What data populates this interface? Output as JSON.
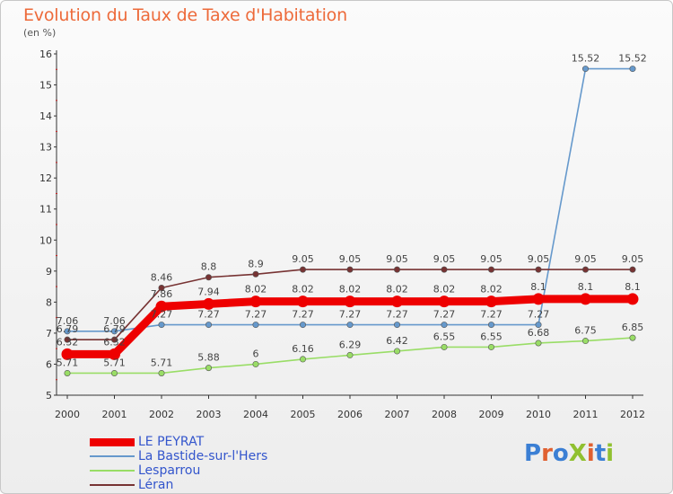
{
  "chart_data": {
    "type": "line",
    "title": "Evolution du Taux de Taxe d'Habitation",
    "subtitle": "(en %)",
    "categories": [
      "2000",
      "2001",
      "2002",
      "2003",
      "2004",
      "2005",
      "2006",
      "2007",
      "2008",
      "2009",
      "2010",
      "2011",
      "2012"
    ],
    "ylim": [
      5,
      16
    ],
    "yticks": [
      "5",
      "6",
      "7",
      "8",
      "9",
      "10",
      "11",
      "12",
      "13",
      "14",
      "15",
      "16"
    ],
    "grid": false,
    "legend_position": "bottom-left",
    "series": [
      {
        "name": "LE PEYRAT",
        "color": "#ee0000",
        "values": [
          6.32,
          6.32,
          7.86,
          7.94,
          8.02,
          8.02,
          8.02,
          8.02,
          8.02,
          8.02,
          8.1,
          8.1,
          8.1
        ],
        "labels": [
          "6.32",
          "6.32",
          "7.86",
          "7.94",
          "8.02",
          "8.02",
          "8.02",
          "8.02",
          "8.02",
          "8.02",
          "8.1",
          "8.1",
          "8.1"
        ]
      },
      {
        "name": "La Bastide-sur-l'Hers",
        "color": "#6699cc",
        "values": [
          7.06,
          7.06,
          7.27,
          7.27,
          7.27,
          7.27,
          7.27,
          7.27,
          7.27,
          7.27,
          7.27,
          15.52,
          15.52
        ],
        "labels": [
          "7.06",
          "7.06",
          "7.27",
          "7.27",
          "7.27",
          "7.27",
          "7.27",
          "7.27",
          "7.27",
          "7.27",
          "7.27",
          "15.52",
          "15.52"
        ]
      },
      {
        "name": "Lesparrou",
        "color": "#99dd66",
        "values": [
          5.71,
          5.71,
          5.71,
          5.88,
          6,
          6.16,
          6.29,
          6.42,
          6.55,
          6.55,
          6.68,
          6.75,
          6.85
        ],
        "labels": [
          "5.71",
          "5.71",
          "5.71",
          "5.88",
          "6",
          "6.16",
          "6.29",
          "6.42",
          "6.55",
          "6.55",
          "6.68",
          "6.75",
          "6.85"
        ]
      },
      {
        "name": "Léran",
        "color": "#773333",
        "values": [
          6.79,
          6.79,
          8.46,
          8.8,
          8.9,
          9.05,
          9.05,
          9.05,
          9.05,
          9.05,
          9.05,
          9.05,
          9.05
        ],
        "labels": [
          "6.79",
          "6.79",
          "8.46",
          "8.8",
          "8.9",
          "9.05",
          "9.05",
          "9.05",
          "9.05",
          "9.05",
          "9.05",
          "9.05",
          "9.05"
        ]
      }
    ]
  },
  "logo": {
    "text": "ProXiti",
    "colors": [
      "#3b7fd4",
      "#e06030",
      "#3b7fd4",
      "#90c030",
      "#e06030",
      "#3b7fd4",
      "#90c030"
    ]
  }
}
